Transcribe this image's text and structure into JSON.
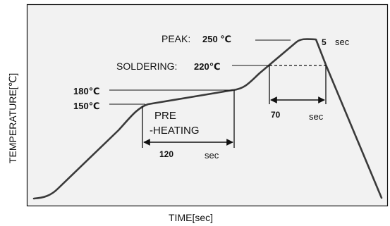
{
  "labels": {
    "y_axis": "TEMPERATURE[℃]",
    "x_axis": "TIME[sec]",
    "peak_label": "PEAK:",
    "peak_temp": "250 ℃",
    "peak_time_value": "5",
    "peak_time_unit": "sec",
    "soldering_label": "SOLDERING:",
    "soldering_temp": "220℃",
    "preheat_upper_temp": "180℃",
    "preheat_lower_temp": "150℃",
    "preheat_line1": "PRE",
    "preheat_line2": "-HEATING",
    "preheat_time_value": "120",
    "preheat_time_unit": "sec",
    "soldering_time_value": "70",
    "soldering_time_unit": "sec"
  },
  "colors": {
    "panel_fill": "#f2f2f2",
    "line": "#111111",
    "curve": "#3a3a3a",
    "text": "#111111"
  }
}
